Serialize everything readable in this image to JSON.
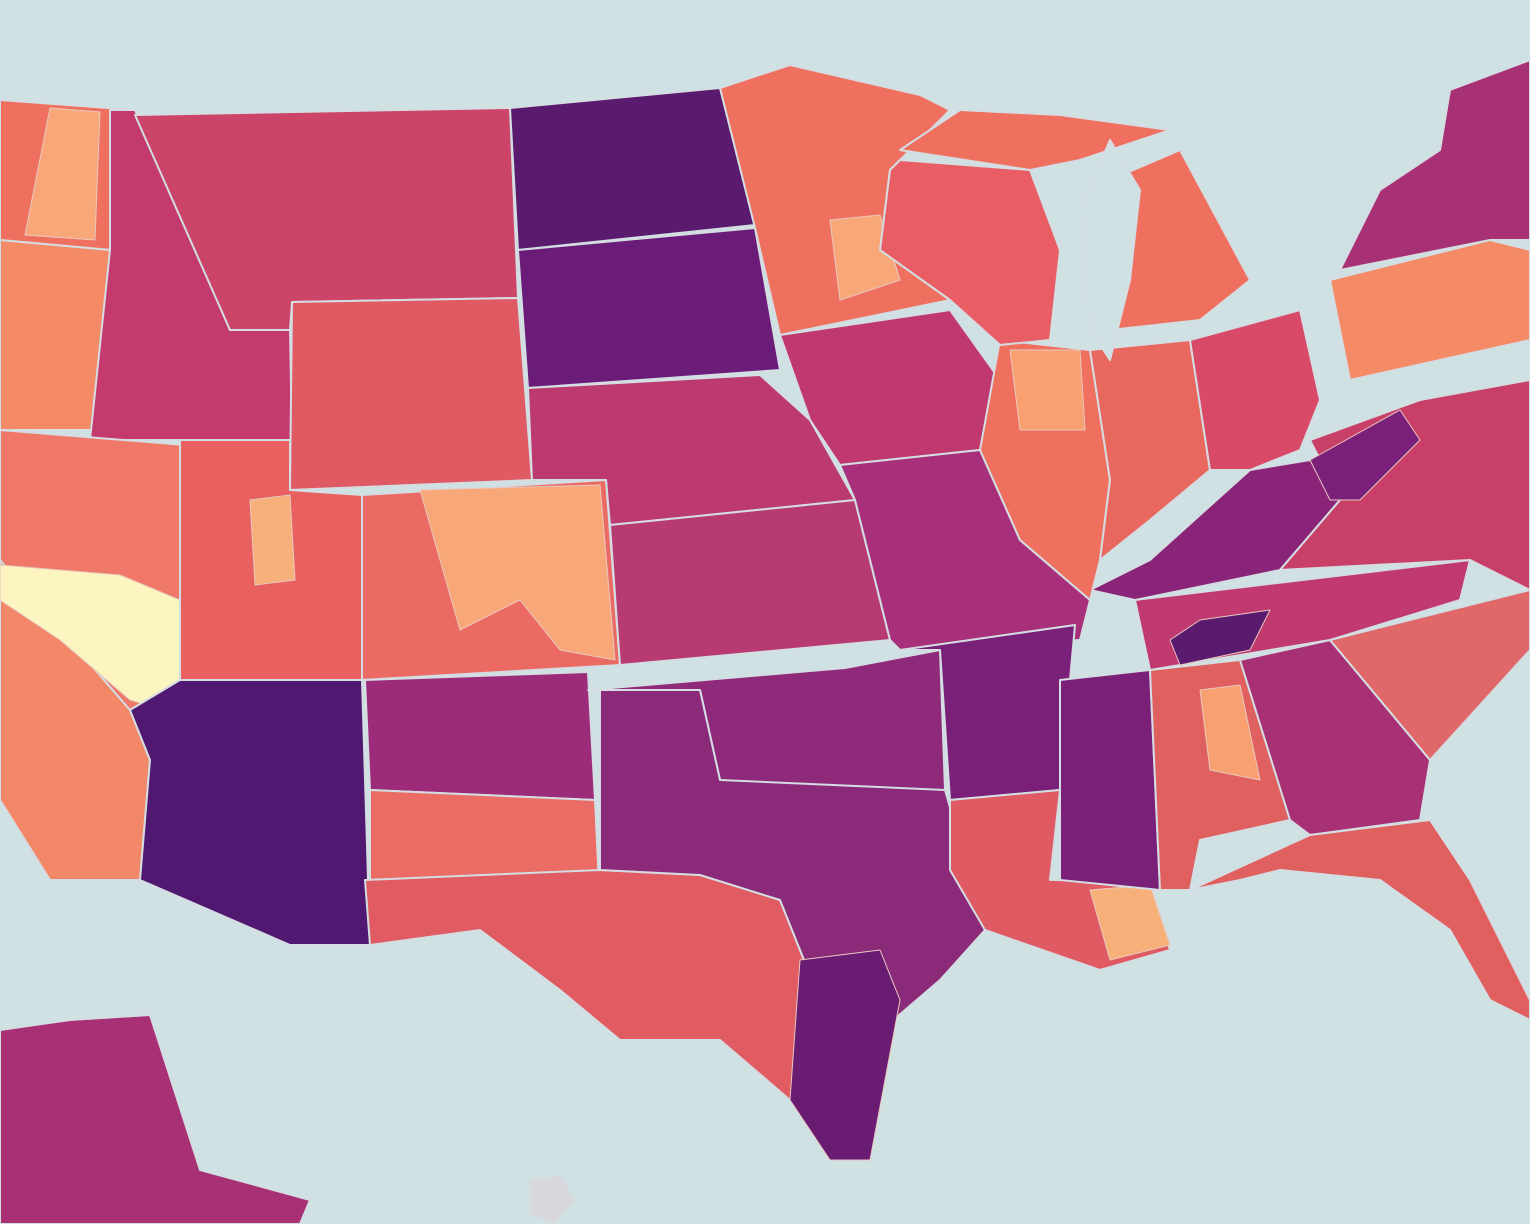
{
  "map": {
    "background": "#cfe1e3",
    "border": "#d4dde2",
    "regions": {
      "nd": "#5a1a6e",
      "sd": "#6a1c78",
      "mt": "#cc4468",
      "wy": "#e05a64",
      "ne": "#bd3a70",
      "ks": "#b83a72",
      "ok": "#8f2a7a",
      "tx-west": "#e05c62",
      "tx-central": "#8a2a78",
      "tx-south": "#6a1c72",
      "nm-north": "#9c2c7a",
      "nm-south": "#ea6c64",
      "co": "#ec6a64",
      "ut": "#e86060",
      "az": "#501870",
      "nv": "#f07868",
      "ca": "#f28868",
      "ca-desert": "#fdf5c0",
      "or": "#f48a66",
      "wa": "#f07060",
      "wa-east": "#f8a878",
      "id": "#c43a6e",
      "mn": "#f07060",
      "ia": "#c0396e",
      "mo": "#a8307a",
      "ar": "#7a2078",
      "la": "#e05a64",
      "ms": "#7a2078",
      "al": "#e06060",
      "ga": "#a83074",
      "fl": "#e06060",
      "carolinas": "#e06868",
      "tn": "#c03a70",
      "ky": "#8a2478",
      "va-wv": "#c84068",
      "il": "#f07060",
      "wi": "#e85e64",
      "mi-up": "#f07060",
      "mi-lp": "#f07060",
      "in": "#e86860",
      "oh": "#d84a68",
      "pa": "#f48a66",
      "ny": "#a83074",
      "ak": "#a83074",
      "co-patch": "#f8a878",
      "ut-patch": "#f8b07a",
      "mn-patch": "#f8a878",
      "il-patch": "#f8a070",
      "la-patch": "#f8b07a",
      "al-patch": "#f8a070",
      "wv": "#7a2078",
      "tn-patch": "#5a1a6e",
      "lake-michigan": "#cfe1e3",
      "hawaii": "#d8d8dc"
    }
  }
}
